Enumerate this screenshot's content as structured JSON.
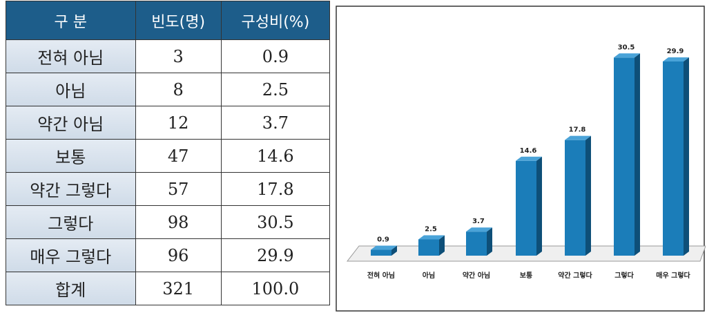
{
  "table": {
    "header": [
      "구  분",
      "빈도(명)",
      "구성비(%)"
    ],
    "rows": [
      [
        "전혀 아님",
        "3",
        "0.9"
      ],
      [
        "아님",
        "8",
        "2.5"
      ],
      [
        "약간 아님",
        "12",
        "3.7"
      ],
      [
        "보통",
        "47",
        "14.6"
      ],
      [
        "약간 그렇다",
        "57",
        "17.8"
      ],
      [
        "그렇다",
        "98",
        "30.5"
      ],
      [
        "매우 그렇다",
        "96",
        "29.9"
      ],
      [
        "합계",
        "321",
        "100.0"
      ]
    ]
  },
  "chart_data": {
    "type": "bar3d",
    "color": "#1b7db9",
    "categories": [
      "전혀 아님",
      "아님",
      "약간 아님",
      "보통",
      "약간 그렇다",
      "그렇다",
      "매우 그렇다"
    ],
    "values": [
      0.9,
      2.5,
      3.7,
      14.6,
      17.8,
      30.5,
      29.9
    ]
  }
}
